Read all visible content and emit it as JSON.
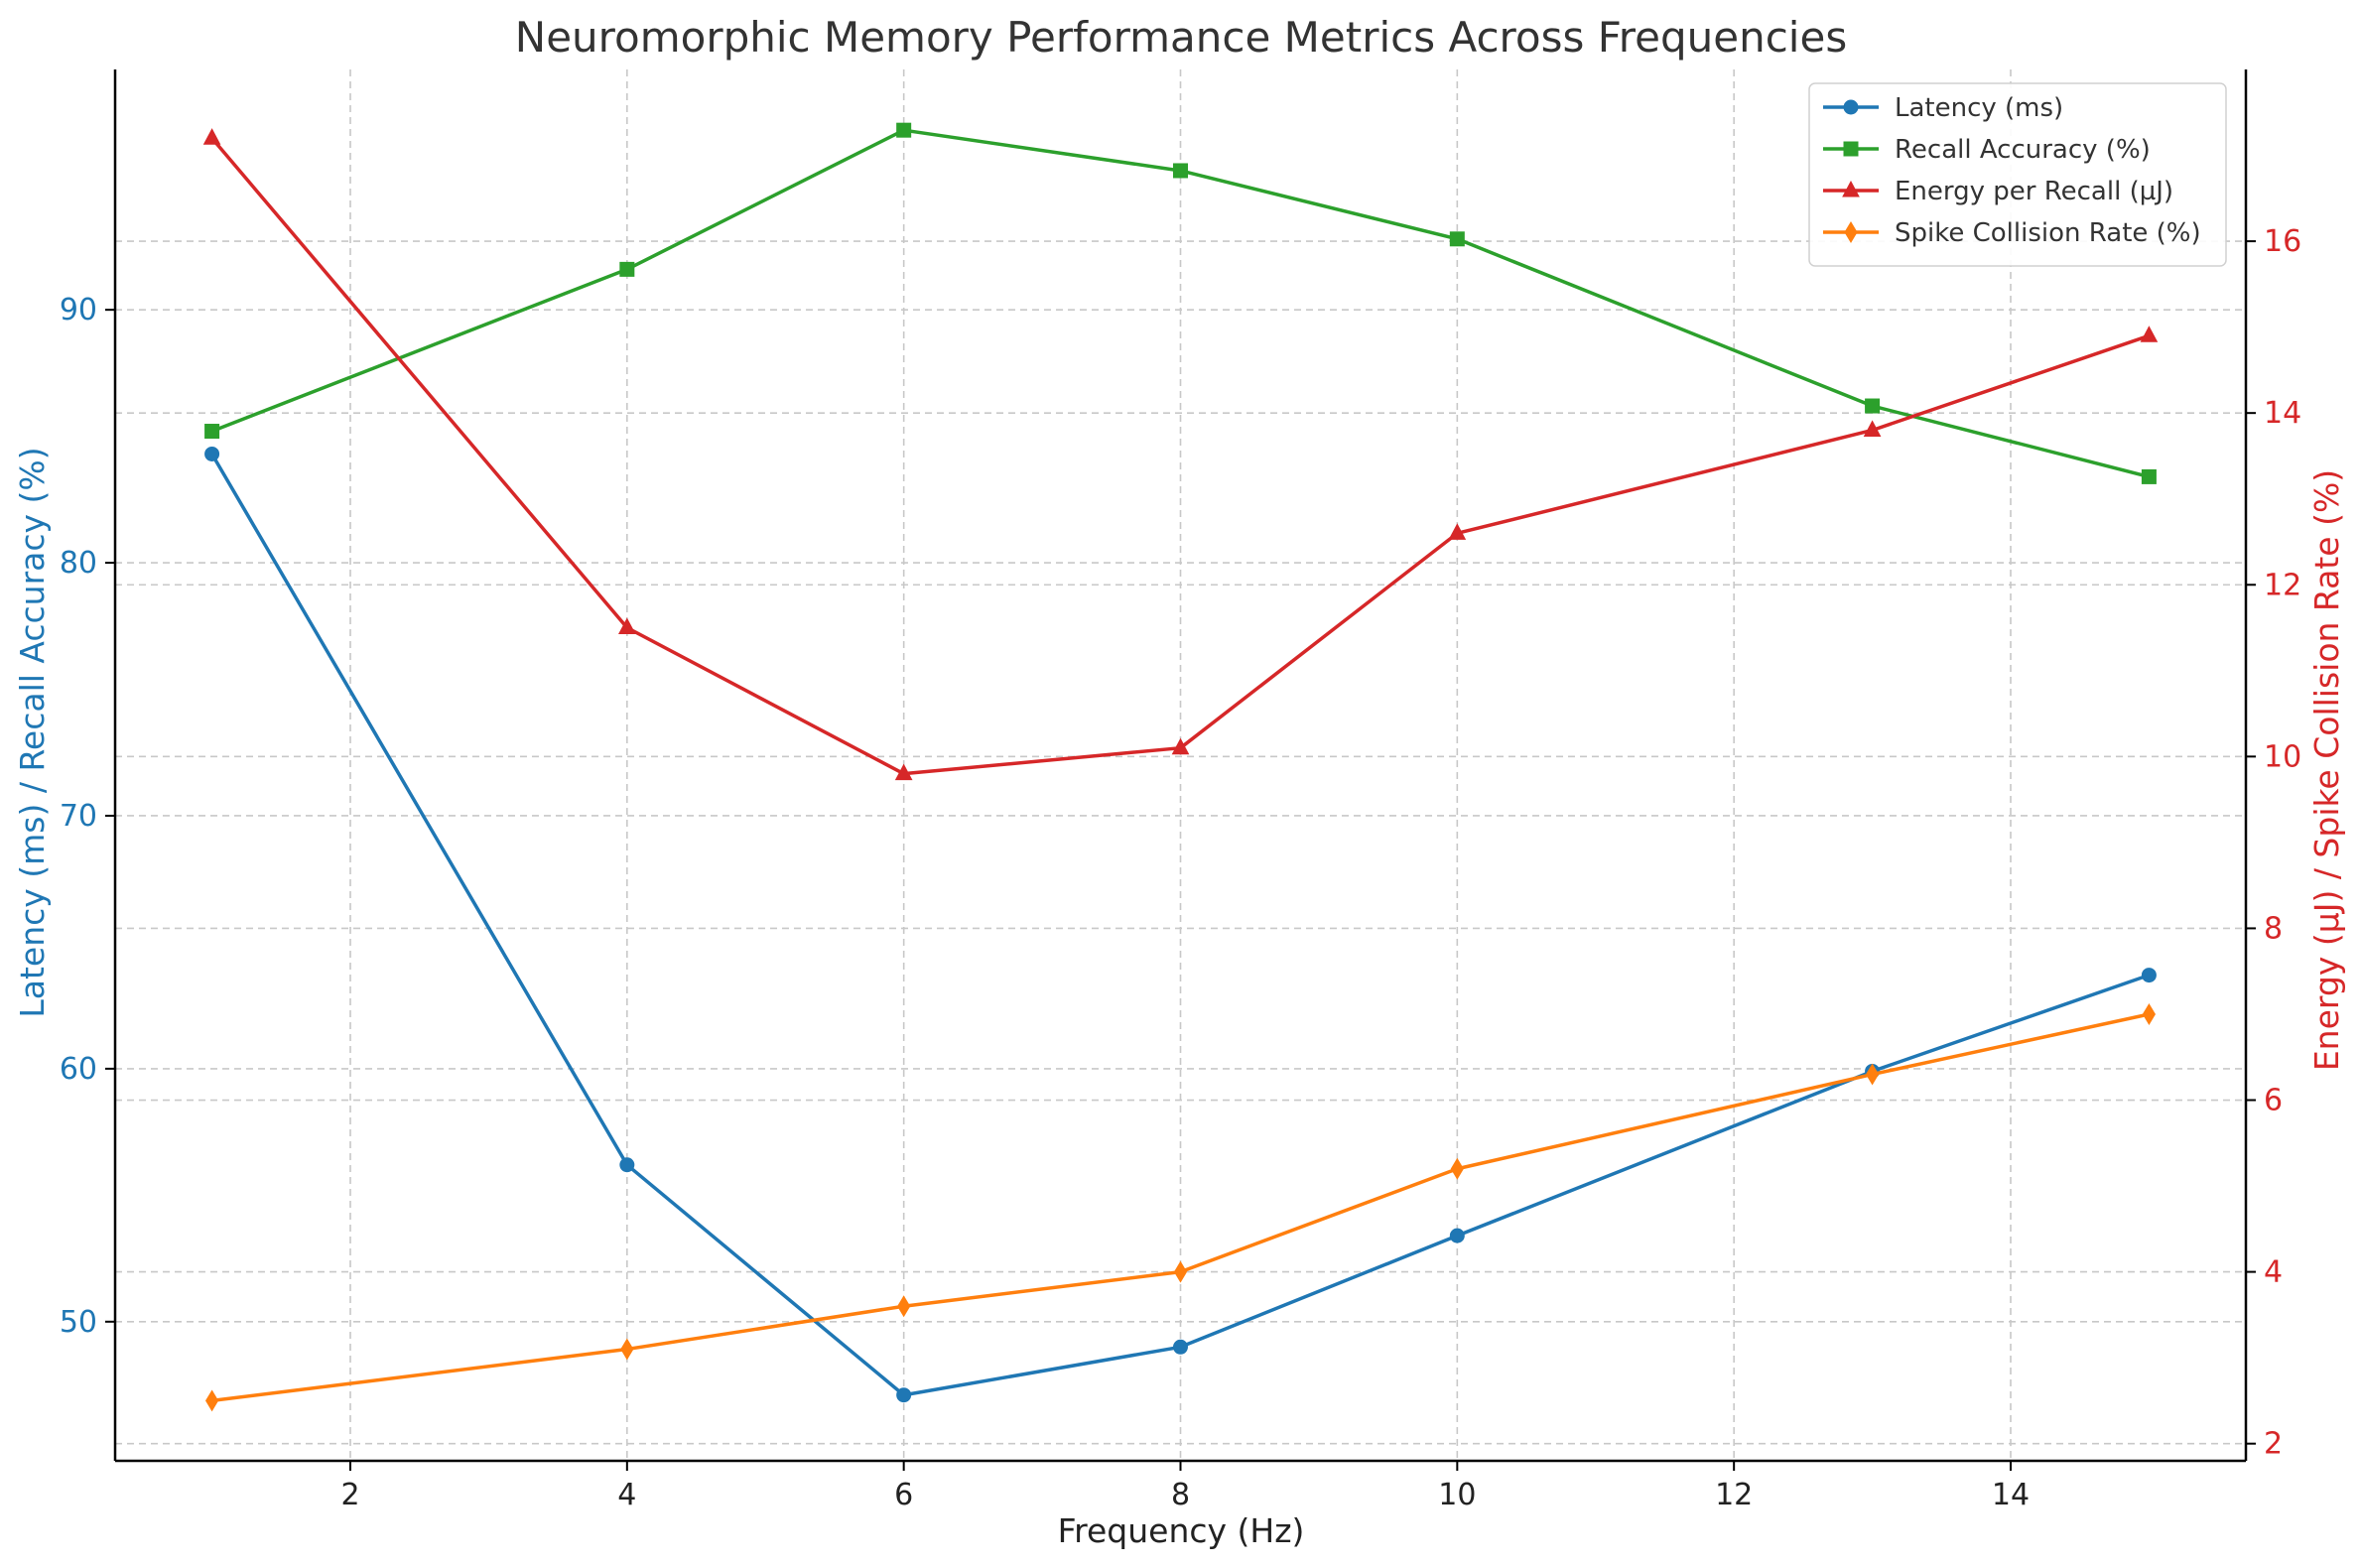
{
  "chart_data": {
    "type": "line",
    "title": "Neuromorphic Memory Performance Metrics Across Frequencies",
    "xlabel": "Frequency (Hz)",
    "ylabel_left": "Latency (ms) / Recall Accuracy (%)",
    "ylabel_right": "Energy (µJ) / Spike Collision Rate (%)",
    "x": [
      1,
      4,
      6,
      8,
      10,
      13,
      15
    ],
    "xlim": [
      0.3,
      15.7
    ],
    "ylim_left": [
      44.5,
      99.5
    ],
    "ylim_right": [
      1.8,
      18
    ],
    "x_ticks": [
      2,
      4,
      6,
      8,
      10,
      12,
      14
    ],
    "y_ticks_left": [
      50,
      60,
      70,
      80,
      90
    ],
    "y_ticks_right": [
      2,
      4,
      6,
      8,
      10,
      12,
      14,
      16
    ],
    "grid": true,
    "legend_position": "top-right",
    "colors": {
      "left_axis": "#1f77b4",
      "right_axis": "#d62728"
    },
    "series": [
      {
        "name": "Latency (ms)",
        "axis": "left",
        "color": "#1f77b4",
        "marker": "circle",
        "values": [
          84.3,
          56.2,
          47.1,
          49.0,
          53.4,
          59.9,
          63.7
        ]
      },
      {
        "name": "Recall Accuracy (%)",
        "axis": "left",
        "color": "#2ca02c",
        "marker": "square",
        "values": [
          85.2,
          91.6,
          97.1,
          95.5,
          92.8,
          86.2,
          83.4
        ]
      },
      {
        "name": "Energy per Recall (µJ)",
        "axis": "right",
        "color": "#d62728",
        "marker": "triangle",
        "values": [
          17.2,
          11.5,
          9.8,
          10.1,
          12.6,
          13.8,
          14.9
        ]
      },
      {
        "name": "Spike Collision Rate (%)",
        "axis": "right",
        "color": "#ff7f0e",
        "marker": "diamond",
        "values": [
          2.5,
          3.1,
          3.6,
          4.0,
          5.2,
          6.3,
          7.0
        ]
      }
    ]
  }
}
